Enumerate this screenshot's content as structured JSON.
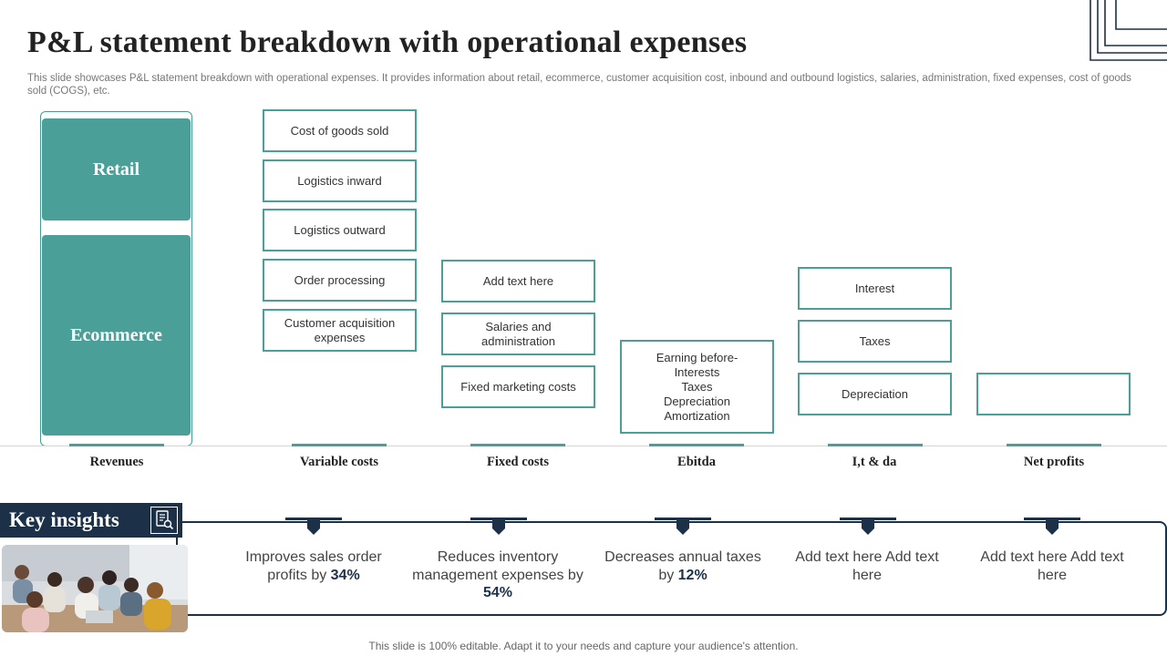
{
  "slide": {
    "title": "P&L statement breakdown with operational expenses",
    "subtitle": "This slide showcases P&L statement breakdown with operational expenses. It provides information about retail, ecommerce, customer acquisition cost, inbound and outbound logistics, salaries, administration, fixed expenses, cost of goods sold (COGS), etc.",
    "footer": "This slide is 100% editable. Adapt it to your needs and capture your audience's attention."
  },
  "revenues": {
    "blocks": [
      "Retail",
      "Ecommerce"
    ]
  },
  "variable_costs": [
    "Cost of goods sold",
    "Logistics inward",
    "Logistics outward",
    "Order processing",
    "Customer acquisition expenses"
  ],
  "fixed_costs": [
    "Add text here",
    "Salaries and administration",
    "Fixed marketing costs"
  ],
  "ebitda": {
    "lines": [
      "Earning before-",
      "Interests",
      "Taxes",
      "Depreciation",
      "Amortization"
    ]
  },
  "itda": [
    "Interest",
    "Taxes",
    "Depreciation"
  ],
  "net_profits": {
    "box_text": ""
  },
  "columns": [
    "Revenues",
    "Variable costs",
    "Fixed costs",
    "Ebitda",
    "I,t & da",
    "Net profits"
  ],
  "insights": {
    "title": "Key insights",
    "icon": "document-search-icon",
    "items": [
      {
        "text": "Improves sales order profits by ",
        "highlight": "34%"
      },
      {
        "text": "Reduces inventory management expenses by ",
        "highlight": "54%"
      },
      {
        "text": "Decreases annual taxes by ",
        "highlight": "12%"
      },
      {
        "text": "Add text here Add text here",
        "highlight": ""
      },
      {
        "text": "Add text here Add text here",
        "highlight": ""
      }
    ]
  },
  "colors": {
    "teal": "#4b9f99",
    "navy": "#1c3048"
  }
}
